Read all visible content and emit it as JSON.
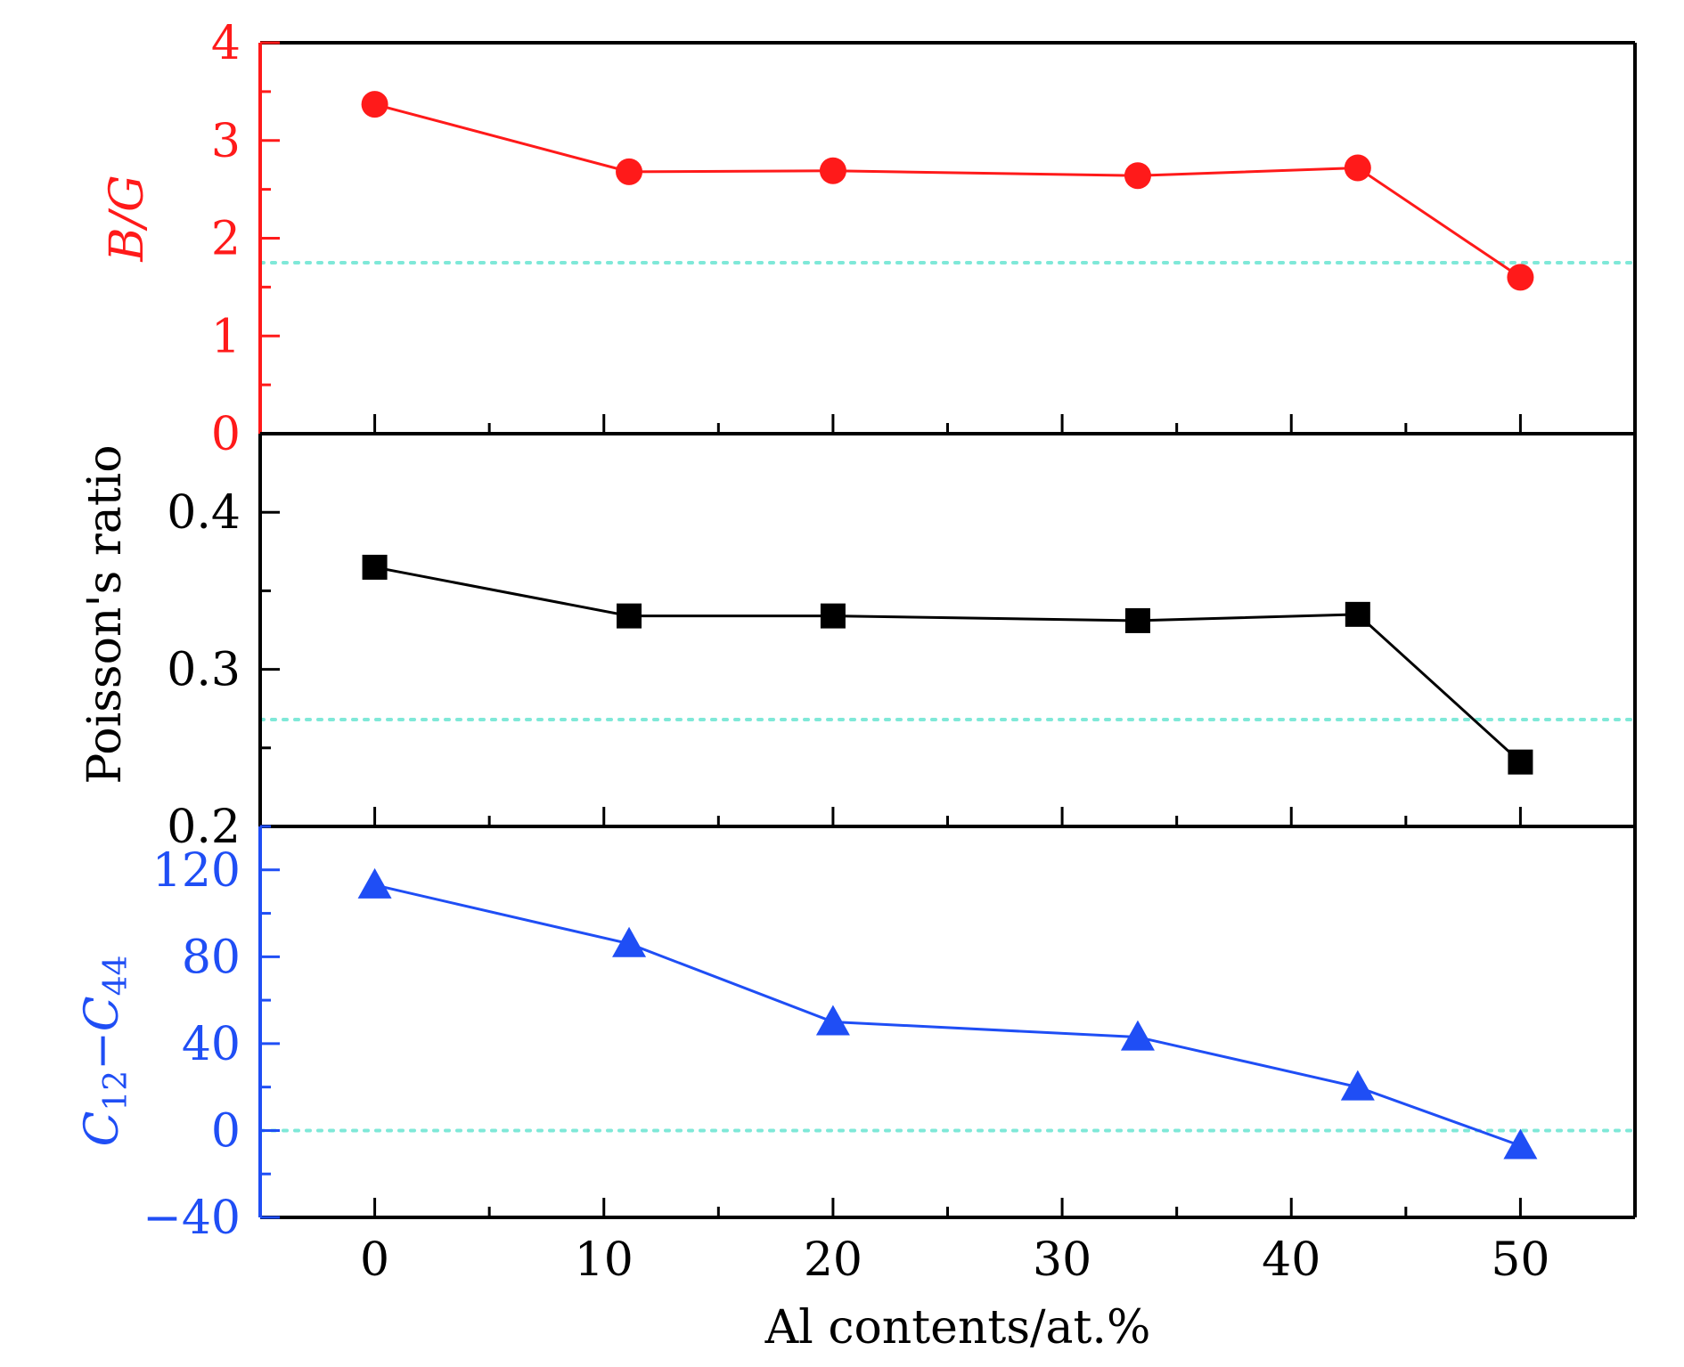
{
  "chart_data": [
    {
      "type": "line",
      "panel": "top",
      "ylabel": "B/G",
      "color": "#ff1a1a",
      "marker": "circle",
      "x": [
        0,
        11.1,
        20,
        33.3,
        42.9,
        50
      ],
      "values": [
        3.37,
        2.68,
        2.69,
        2.64,
        2.72,
        1.6
      ],
      "ylim": [
        0,
        4
      ],
      "yticks": [
        0,
        1,
        2,
        3,
        4
      ],
      "ytick_labels": [
        "0",
        "1",
        "2",
        "3",
        "4"
      ],
      "reference_line": 1.75
    },
    {
      "type": "line",
      "panel": "middle",
      "ylabel": "Poisson's ratio",
      "color": "#000000",
      "marker": "square",
      "x": [
        0,
        11.1,
        20,
        33.3,
        42.9,
        50
      ],
      "values": [
        0.365,
        0.334,
        0.334,
        0.331,
        0.335,
        0.241
      ],
      "ylim": [
        0.2,
        0.45
      ],
      "yticks": [
        0.2,
        0.3,
        0.4
      ],
      "ytick_labels": [
        "0.2",
        "0.3",
        "0.4"
      ],
      "reference_line": 0.268
    },
    {
      "type": "line",
      "panel": "bottom",
      "ylabel_parts": {
        "c1": "C",
        "sub1": "12",
        "dash": "−",
        "c2": "C",
        "sub2": "44"
      },
      "color": "#1f4ef5",
      "marker": "triangle",
      "x": [
        0,
        11.1,
        20,
        33.3,
        42.9,
        50
      ],
      "values": [
        113,
        86,
        50,
        43,
        20,
        -7
      ],
      "ylim": [
        -40,
        140
      ],
      "yticks": [
        -40,
        0,
        40,
        80,
        120
      ],
      "ytick_labels": [
        "−40",
        "0",
        "40",
        "80",
        "120"
      ],
      "reference_line": 0
    }
  ],
  "xaxis": {
    "label": "Al contents/at.%",
    "xlim": [
      -5,
      55
    ],
    "ticks": [
      0,
      10,
      20,
      30,
      40,
      50
    ],
    "tick_labels": [
      "0",
      "10",
      "20",
      "30",
      "40",
      "50"
    ]
  },
  "colors": {
    "reference_line": "#7fe8d8",
    "frame": "#000000"
  }
}
